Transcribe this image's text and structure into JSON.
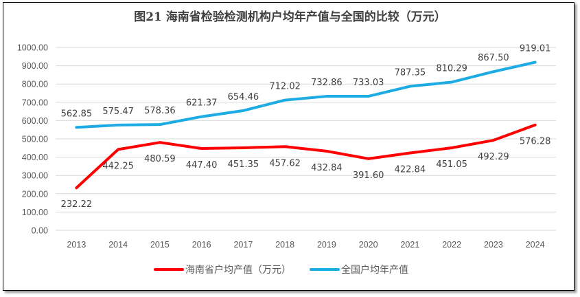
{
  "chart_data": {
    "type": "line",
    "title": "图21   海南省检验检测机构户均年产值与全国的比较（万元）",
    "xlabel": "",
    "ylabel": "",
    "categories": [
      "2013",
      "2014",
      "2015",
      "2016",
      "2017",
      "2018",
      "2019",
      "2020",
      "2021",
      "2022",
      "2023",
      "2024"
    ],
    "ylim": [
      0,
      1000
    ],
    "yticks": [
      "0.00",
      "100.00",
      "200.00",
      "300.00",
      "400.00",
      "500.00",
      "600.00",
      "700.00",
      "800.00",
      "900.00",
      "1000.00"
    ],
    "grid": true,
    "legend_position": "bottom",
    "series": [
      {
        "name": "海南省户均产值（万元）",
        "color": "#ff0000",
        "label_position": "below",
        "values": [
          232.22,
          442.25,
          480.59,
          447.4,
          451.35,
          457.62,
          432.84,
          391.6,
          422.84,
          451.05,
          492.29,
          576.28
        ],
        "labels": [
          "232.22",
          "442.25",
          "480.59",
          "447.40",
          "451.35",
          "457.62",
          "432.84",
          "391.60",
          "422.84",
          "451.05",
          "492.29",
          "576.28"
        ]
      },
      {
        "name": "全国户均年产值",
        "color": "#1cabe2",
        "label_position": "above",
        "values": [
          562.85,
          575.47,
          578.36,
          621.37,
          654.46,
          712.02,
          732.86,
          733.03,
          787.35,
          810.29,
          867.5,
          919.01
        ],
        "labels": [
          "562.85",
          "575.47",
          "578.36",
          "621.37",
          "654.46",
          "712.02",
          "732.86",
          "733.03",
          "787.35",
          "810.29",
          "867.50",
          "919.01"
        ]
      }
    ]
  }
}
